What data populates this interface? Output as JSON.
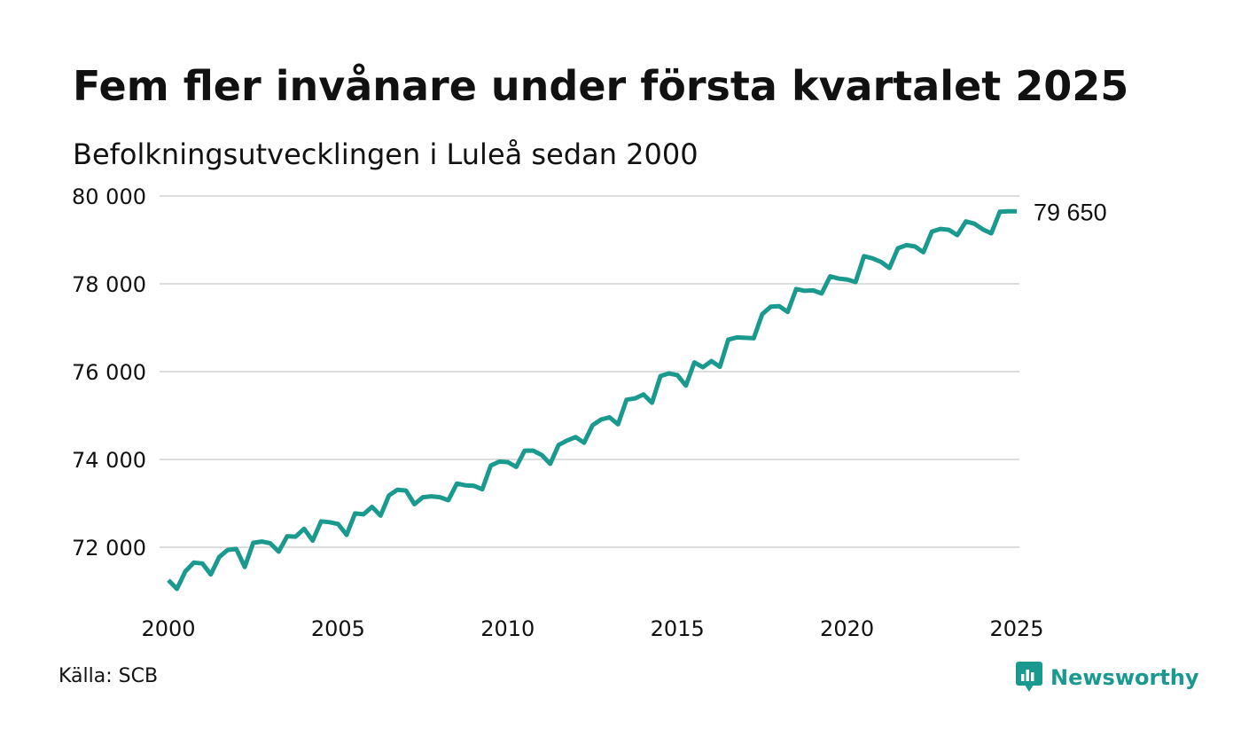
{
  "title": "Fem fler invånare under första kvartalet 2025",
  "subtitle": "Befolkningsutvecklingen i Luleå sedan 2000",
  "source": "Källa: SCB",
  "brand": {
    "name": "Newsworthy",
    "icon": "bar-chart-speech-bubble-icon",
    "color": "#1a9a8e"
  },
  "colors": {
    "line": "#1a9a8e",
    "grid": "#dddddd",
    "text": "#111111"
  },
  "chart_data": {
    "type": "line",
    "xlabel": "",
    "ylabel": "",
    "xlim": [
      2000,
      2025
    ],
    "ylim": [
      70500,
      80000
    ],
    "x_ticks": [
      2000,
      2005,
      2010,
      2015,
      2020,
      2025
    ],
    "x_tick_labels": [
      "2000",
      "2005",
      "2010",
      "2015",
      "2020",
      "2025"
    ],
    "y_ticks": [
      72000,
      74000,
      76000,
      78000,
      80000
    ],
    "y_tick_labels": [
      "72 000",
      "74 000",
      "76 000",
      "78 000",
      "80 000"
    ],
    "grid": "horizontal",
    "end_label": "79 650",
    "series": [
      {
        "x": [
          2000.0,
          2000.25,
          2000.5,
          2000.75,
          2001.0,
          2001.25,
          2001.5,
          2001.75,
          2002.0,
          2002.25,
          2002.5,
          2002.75,
          2003.0,
          2003.25,
          2003.5,
          2003.75,
          2004.0,
          2004.25,
          2004.5,
          2004.75,
          2005.0,
          2005.25,
          2005.5,
          2005.75,
          2006.0,
          2006.25,
          2006.5,
          2006.75,
          2007.0,
          2007.25,
          2007.5,
          2007.75,
          2008.0,
          2008.25,
          2008.5,
          2008.75,
          2009.0,
          2009.25,
          2009.5,
          2009.75,
          2010.0,
          2010.25,
          2010.5,
          2010.75,
          2011.0,
          2011.25,
          2011.5,
          2011.75,
          2012.0,
          2012.25,
          2012.5,
          2012.75,
          2013.0,
          2013.25,
          2013.5,
          2013.75,
          2014.0,
          2014.25,
          2014.5,
          2014.75,
          2015.0,
          2015.25,
          2015.5,
          2015.75,
          2016.0,
          2016.25,
          2016.5,
          2016.75,
          2017.0,
          2017.25,
          2017.5,
          2017.75,
          2018.0,
          2018.25,
          2018.5,
          2018.75,
          2019.0,
          2019.25,
          2019.5,
          2019.75,
          2020.0,
          2020.25,
          2020.5,
          2020.75,
          2021.0,
          2021.25,
          2021.5,
          2021.75,
          2022.0,
          2022.25,
          2022.5,
          2022.75,
          2023.0,
          2023.25,
          2023.5,
          2023.75,
          2024.0,
          2024.25,
          2024.5,
          2024.75,
          2025.0
        ],
        "values": [
          71250,
          71050,
          71450,
          71650,
          71630,
          71380,
          71780,
          71940,
          71960,
          71550,
          72100,
          72130,
          72090,
          71900,
          72250,
          72240,
          72420,
          72150,
          72590,
          72570,
          72530,
          72280,
          72770,
          72750,
          72920,
          72720,
          73180,
          73310,
          73290,
          72980,
          73140,
          73160,
          73140,
          73070,
          73450,
          73410,
          73400,
          73320,
          73860,
          73950,
          73940,
          73830,
          74200,
          74200,
          74100,
          73900,
          74330,
          74430,
          74510,
          74380,
          74780,
          74910,
          74960,
          74800,
          75360,
          75390,
          75480,
          75290,
          75900,
          75960,
          75920,
          75680,
          76210,
          76100,
          76240,
          76110,
          76730,
          76780,
          76770,
          76760,
          77310,
          77480,
          77490,
          77360,
          77880,
          77840,
          77850,
          77780,
          78170,
          78120,
          78100,
          78040,
          78630,
          78580,
          78500,
          78360,
          78810,
          78880,
          78850,
          78720,
          79190,
          79250,
          79230,
          79110,
          79420,
          79370,
          79240,
          79150,
          79640,
          79650,
          79650
        ]
      }
    ]
  }
}
